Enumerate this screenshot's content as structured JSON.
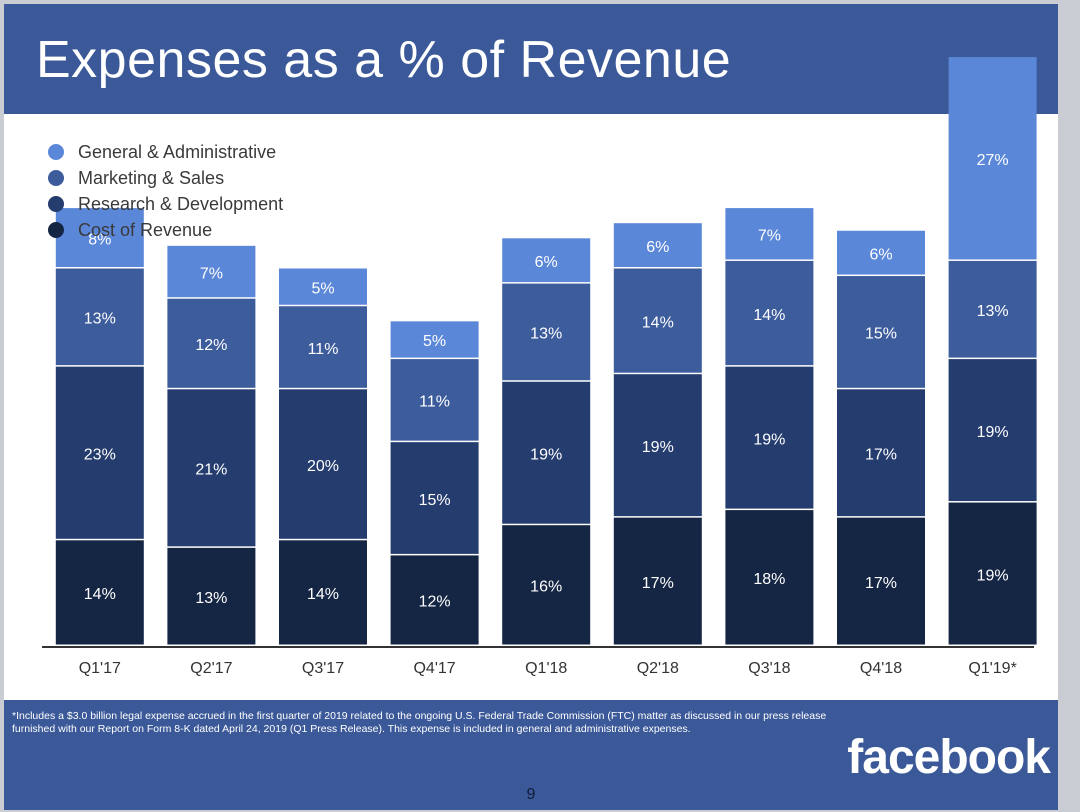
{
  "slide": {
    "title": "Expenses as a % of Revenue",
    "footnote": "*Includes a $3.0 billion legal expense accrued in the first quarter of 2019 related to the ongoing U.S. Federal Trade Commission (FTC) matter as discussed in our press release furnished with our Report on Form 8-K dated April 24, 2019 (Q1 Press Release). This expense is included in general and administrative expenses.",
    "logo_text": "facebook",
    "page_number": "9"
  },
  "colors": {
    "header_bg": "#3b5998",
    "axis": "#333333"
  },
  "chart_data": {
    "type": "bar",
    "stacked": true,
    "title": "Expenses as a % of Revenue",
    "xlabel": "",
    "ylabel": "",
    "legend_position": "top-left",
    "categories": [
      "Q1'17",
      "Q2'17",
      "Q3'17",
      "Q4'17",
      "Q1'18",
      "Q2'18",
      "Q3'18",
      "Q4'18",
      "Q1'19*"
    ],
    "series": [
      {
        "name": "Cost of Revenue",
        "color": "#152544",
        "values": [
          14,
          13,
          14,
          12,
          16,
          17,
          18,
          17,
          19
        ]
      },
      {
        "name": "Research & Development",
        "color": "#243c6e",
        "values": [
          23,
          21,
          20,
          15,
          19,
          19,
          19,
          17,
          19
        ]
      },
      {
        "name": "Marketing & Sales",
        "color": "#3d5c9c",
        "values": [
          13,
          12,
          11,
          11,
          13,
          14,
          14,
          15,
          13
        ]
      },
      {
        "name": "General & Administrative",
        "color": "#5b87d8",
        "values": [
          8,
          7,
          5,
          5,
          6,
          6,
          7,
          6,
          27
        ]
      }
    ],
    "legend_order": [
      "General & Administrative",
      "Marketing & Sales",
      "Research & Development",
      "Cost of Revenue"
    ],
    "value_suffix": "%",
    "grid": false
  }
}
